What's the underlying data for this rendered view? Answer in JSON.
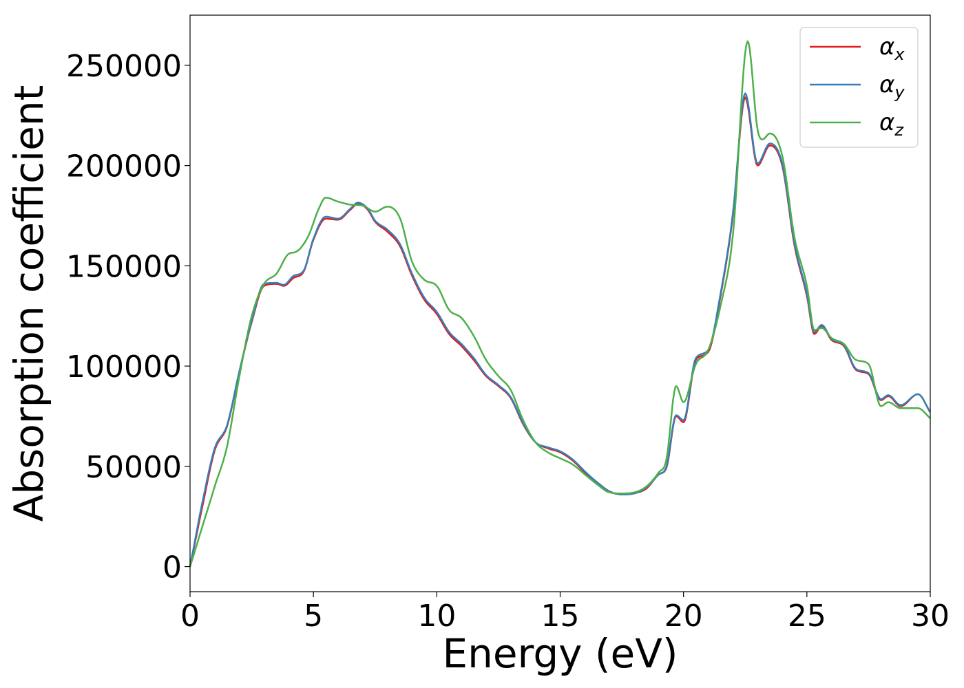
{
  "chart_data": {
    "type": "line",
    "xlabel": "Energy (eV)",
    "ylabel": "Absorption coefficient",
    "xlim": [
      0,
      30
    ],
    "ylim": [
      -12500,
      275000
    ],
    "xticks": [
      0,
      5,
      10,
      15,
      20,
      25,
      30
    ],
    "xtick_labels": [
      "0",
      "5",
      "10",
      "15",
      "20",
      "25",
      "30"
    ],
    "yticks": [
      0,
      50000,
      100000,
      150000,
      200000,
      250000
    ],
    "ytick_labels": [
      "0",
      "50000",
      "100000",
      "150000",
      "200000",
      "250000"
    ],
    "grid": false,
    "legend_position": "top-right",
    "series": [
      {
        "name": "αx",
        "name_base": "α",
        "name_sub": "x",
        "color": "#e41a1c",
        "points": [
          [
            0,
            0
          ],
          [
            0.5,
            30000
          ],
          [
            1,
            58000
          ],
          [
            1.5,
            70000
          ],
          [
            2,
            97000
          ],
          [
            2.5,
            122000
          ],
          [
            3,
            140000
          ],
          [
            3.5,
            141000
          ],
          [
            3.8,
            140000
          ],
          [
            4.2,
            144000
          ],
          [
            4.6,
            147000
          ],
          [
            5,
            163000
          ],
          [
            5.5,
            173500
          ],
          [
            6,
            173000
          ],
          [
            6.5,
            178000
          ],
          [
            6.8,
            181000
          ],
          [
            7.2,
            178000
          ],
          [
            7.5,
            172000
          ],
          [
            8,
            167000
          ],
          [
            8.5,
            160000
          ],
          [
            9,
            145000
          ],
          [
            9.5,
            133000
          ],
          [
            10,
            126000
          ],
          [
            10.5,
            116000
          ],
          [
            11,
            110000
          ],
          [
            11.5,
            103000
          ],
          [
            12,
            95000
          ],
          [
            12.5,
            90000
          ],
          [
            13,
            84000
          ],
          [
            13.5,
            71000
          ],
          [
            14,
            62000
          ],
          [
            14.5,
            59000
          ],
          [
            15,
            57000
          ],
          [
            15.5,
            53000
          ],
          [
            16,
            47000
          ],
          [
            16.5,
            42000
          ],
          [
            17,
            37500
          ],
          [
            17.5,
            36000
          ],
          [
            18,
            36500
          ],
          [
            18.5,
            39000
          ],
          [
            19,
            46000
          ],
          [
            19.3,
            49000
          ],
          [
            19.7,
            75000
          ],
          [
            20,
            72000
          ],
          [
            20.5,
            103000
          ],
          [
            21,
            107000
          ],
          [
            21.5,
            135000
          ],
          [
            22,
            175000
          ],
          [
            22.5,
            234000
          ],
          [
            23,
            200000
          ],
          [
            23.5,
            210000
          ],
          [
            24,
            200000
          ],
          [
            24.5,
            160000
          ],
          [
            25,
            135000
          ],
          [
            25.3,
            116000
          ],
          [
            25.6,
            120000
          ],
          [
            26,
            113000
          ],
          [
            26.5,
            110000
          ],
          [
            27,
            98000
          ],
          [
            27.5,
            96000
          ],
          [
            28,
            83000
          ],
          [
            28.3,
            85000
          ],
          [
            28.8,
            80000
          ],
          [
            29.5,
            86000
          ],
          [
            30,
            77000
          ]
        ]
      },
      {
        "name": "αy",
        "name_base": "α",
        "name_sub": "y",
        "color": "#377eb8",
        "points": [
          [
            0,
            0
          ],
          [
            0.5,
            32000
          ],
          [
            1,
            59000
          ],
          [
            1.5,
            70500
          ],
          [
            2,
            97500
          ],
          [
            2.5,
            122500
          ],
          [
            3,
            141000
          ],
          [
            3.5,
            141500
          ],
          [
            3.8,
            140500
          ],
          [
            4.2,
            145000
          ],
          [
            4.6,
            147500
          ],
          [
            5,
            163500
          ],
          [
            5.5,
            174500
          ],
          [
            6,
            173500
          ],
          [
            6.5,
            178500
          ],
          [
            6.8,
            181500
          ],
          [
            7.2,
            178500
          ],
          [
            7.5,
            172500
          ],
          [
            8,
            168000
          ],
          [
            8.5,
            161000
          ],
          [
            9,
            146000
          ],
          [
            9.5,
            134000
          ],
          [
            10,
            127000
          ],
          [
            10.5,
            117000
          ],
          [
            11,
            111000
          ],
          [
            11.5,
            104000
          ],
          [
            12,
            95500
          ],
          [
            12.5,
            90500
          ],
          [
            13,
            84500
          ],
          [
            13.5,
            71500
          ],
          [
            14,
            62000
          ],
          [
            14.5,
            59500
          ],
          [
            15,
            57500
          ],
          [
            15.5,
            53500
          ],
          [
            16,
            47500
          ],
          [
            16.5,
            42000
          ],
          [
            17,
            37500
          ],
          [
            17.5,
            36000
          ],
          [
            18,
            36500
          ],
          [
            18.5,
            39500
          ],
          [
            19,
            46000
          ],
          [
            19.3,
            49500
          ],
          [
            19.7,
            75500
          ],
          [
            20,
            73000
          ],
          [
            20.5,
            104000
          ],
          [
            21,
            108000
          ],
          [
            21.5,
            136000
          ],
          [
            22,
            176000
          ],
          [
            22.5,
            236000
          ],
          [
            23,
            201000
          ],
          [
            23.5,
            211000
          ],
          [
            24,
            201000
          ],
          [
            24.5,
            161000
          ],
          [
            25,
            136000
          ],
          [
            25.3,
            117000
          ],
          [
            25.6,
            120500
          ],
          [
            26,
            113500
          ],
          [
            26.5,
            110500
          ],
          [
            27,
            98500
          ],
          [
            27.5,
            96500
          ],
          [
            28,
            83500
          ],
          [
            28.3,
            85500
          ],
          [
            28.8,
            80500
          ],
          [
            29.5,
            86000
          ],
          [
            30,
            77000
          ]
        ]
      },
      {
        "name": "αz",
        "name_base": "α",
        "name_sub": "z",
        "color": "#4daf4a",
        "points": [
          [
            0,
            0
          ],
          [
            0.5,
            20000
          ],
          [
            1,
            40000
          ],
          [
            1.5,
            60000
          ],
          [
            2,
            95000
          ],
          [
            2.5,
            125000
          ],
          [
            3,
            141000
          ],
          [
            3.5,
            146000
          ],
          [
            4,
            156000
          ],
          [
            4.3,
            157000
          ],
          [
            4.8,
            165000
          ],
          [
            5.2,
            178000
          ],
          [
            5.5,
            184000
          ],
          [
            6,
            182000
          ],
          [
            6.5,
            180500
          ],
          [
            7,
            180000
          ],
          [
            7.5,
            177000
          ],
          [
            8,
            179500
          ],
          [
            8.5,
            174000
          ],
          [
            9,
            152000
          ],
          [
            9.5,
            143000
          ],
          [
            10,
            140000
          ],
          [
            10.5,
            128000
          ],
          [
            11,
            124000
          ],
          [
            11.5,
            115000
          ],
          [
            12,
            103000
          ],
          [
            12.5,
            95000
          ],
          [
            13,
            88000
          ],
          [
            13.5,
            73000
          ],
          [
            14,
            62000
          ],
          [
            14.5,
            57000
          ],
          [
            15,
            54000
          ],
          [
            15.5,
            51000
          ],
          [
            16,
            46000
          ],
          [
            16.5,
            41000
          ],
          [
            17,
            37000
          ],
          [
            17.5,
            36500
          ],
          [
            18,
            37000
          ],
          [
            18.5,
            40000
          ],
          [
            19,
            47000
          ],
          [
            19.3,
            53000
          ],
          [
            19.7,
            90000
          ],
          [
            20,
            82000
          ],
          [
            20.5,
            101000
          ],
          [
            21,
            108000
          ],
          [
            21.5,
            130000
          ],
          [
            22,
            165000
          ],
          [
            22.6,
            262000
          ],
          [
            23,
            218000
          ],
          [
            23.2,
            213000
          ],
          [
            23.5,
            216000
          ],
          [
            24,
            205000
          ],
          [
            24.5,
            164000
          ],
          [
            25,
            140000
          ],
          [
            25.3,
            118000
          ],
          [
            25.6,
            119000
          ],
          [
            26,
            114000
          ],
          [
            26.5,
            111000
          ],
          [
            27,
            103000
          ],
          [
            27.5,
            101000
          ],
          [
            28,
            80000
          ],
          [
            28.3,
            82000
          ],
          [
            28.8,
            79000
          ],
          [
            29.5,
            79000
          ],
          [
            30,
            74000
          ]
        ]
      }
    ]
  }
}
